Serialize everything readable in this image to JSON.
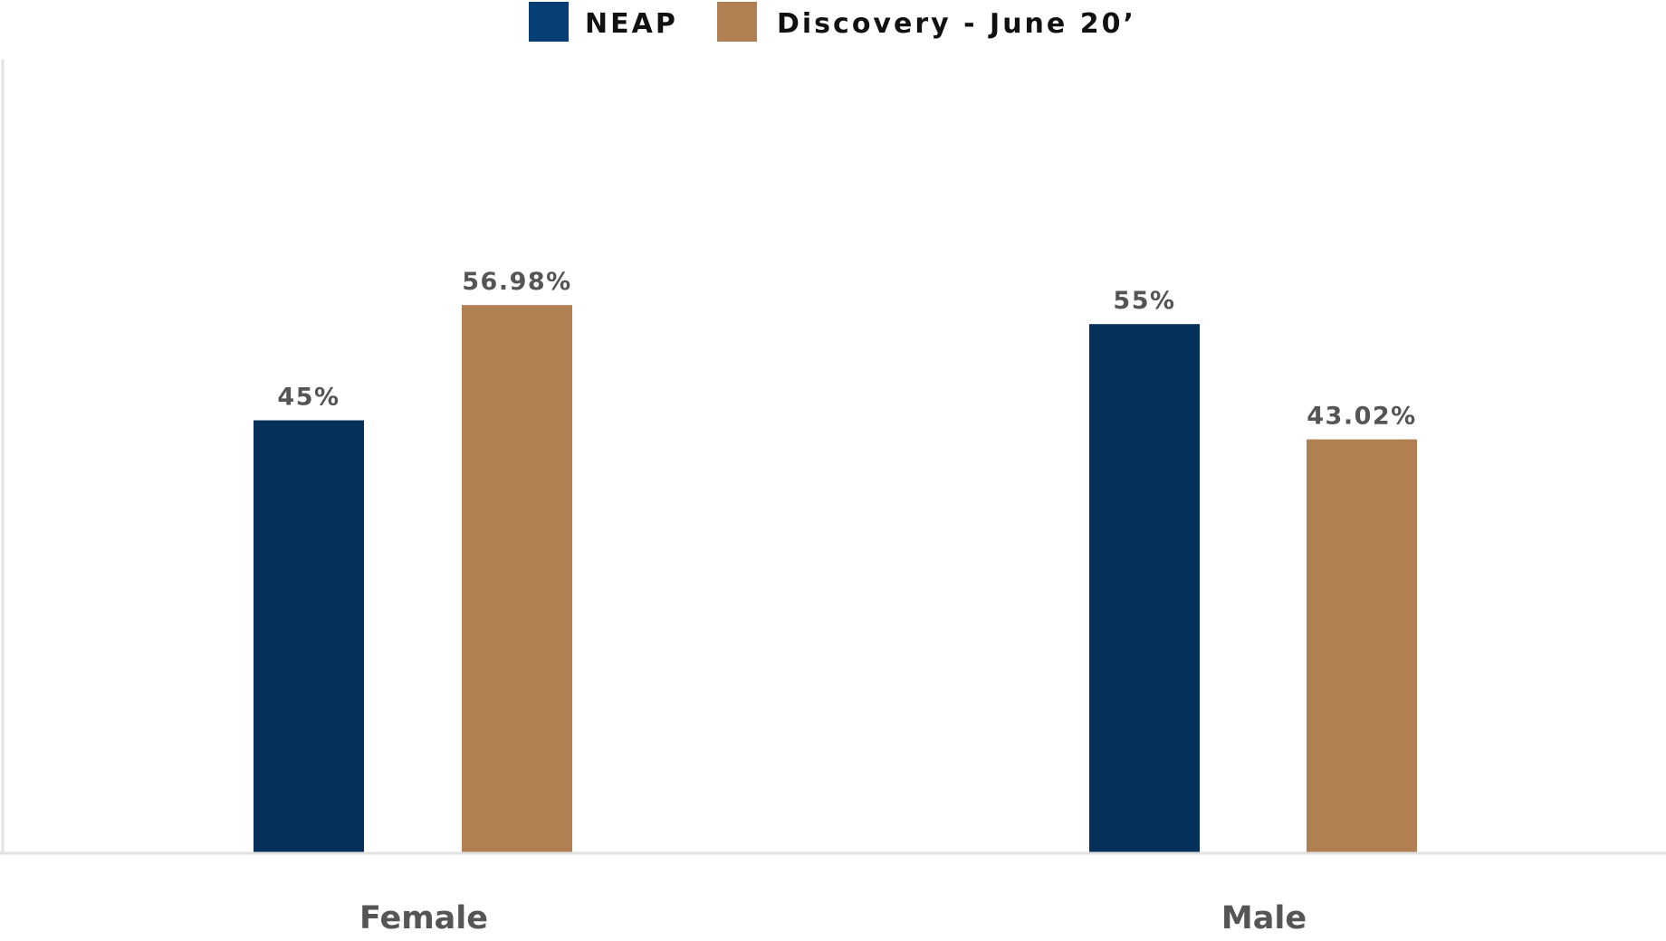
{
  "chart_data": {
    "type": "bar",
    "categories": [
      "Female",
      "Male"
    ],
    "series": [
      {
        "name": "NEAP",
        "color": "#05305a",
        "legend_color": "#073e73",
        "values": [
          45,
          55
        ],
        "labels": [
          "45%",
          "55%"
        ]
      },
      {
        "name": "Discovery - June 20’",
        "color": "#b07f52",
        "legend_color": "#b07f52",
        "values": [
          56.98,
          43.02
        ],
        "labels": [
          "56.98%",
          "43.02%"
        ]
      }
    ],
    "ylim": [
      0,
      65
    ],
    "grid": false,
    "legend_position": "top-center",
    "title": "",
    "xlabel": "",
    "ylabel": ""
  },
  "colors": {
    "axis": "#e2e2e2",
    "label_text": "#555555",
    "legend_text": "#111111"
  }
}
